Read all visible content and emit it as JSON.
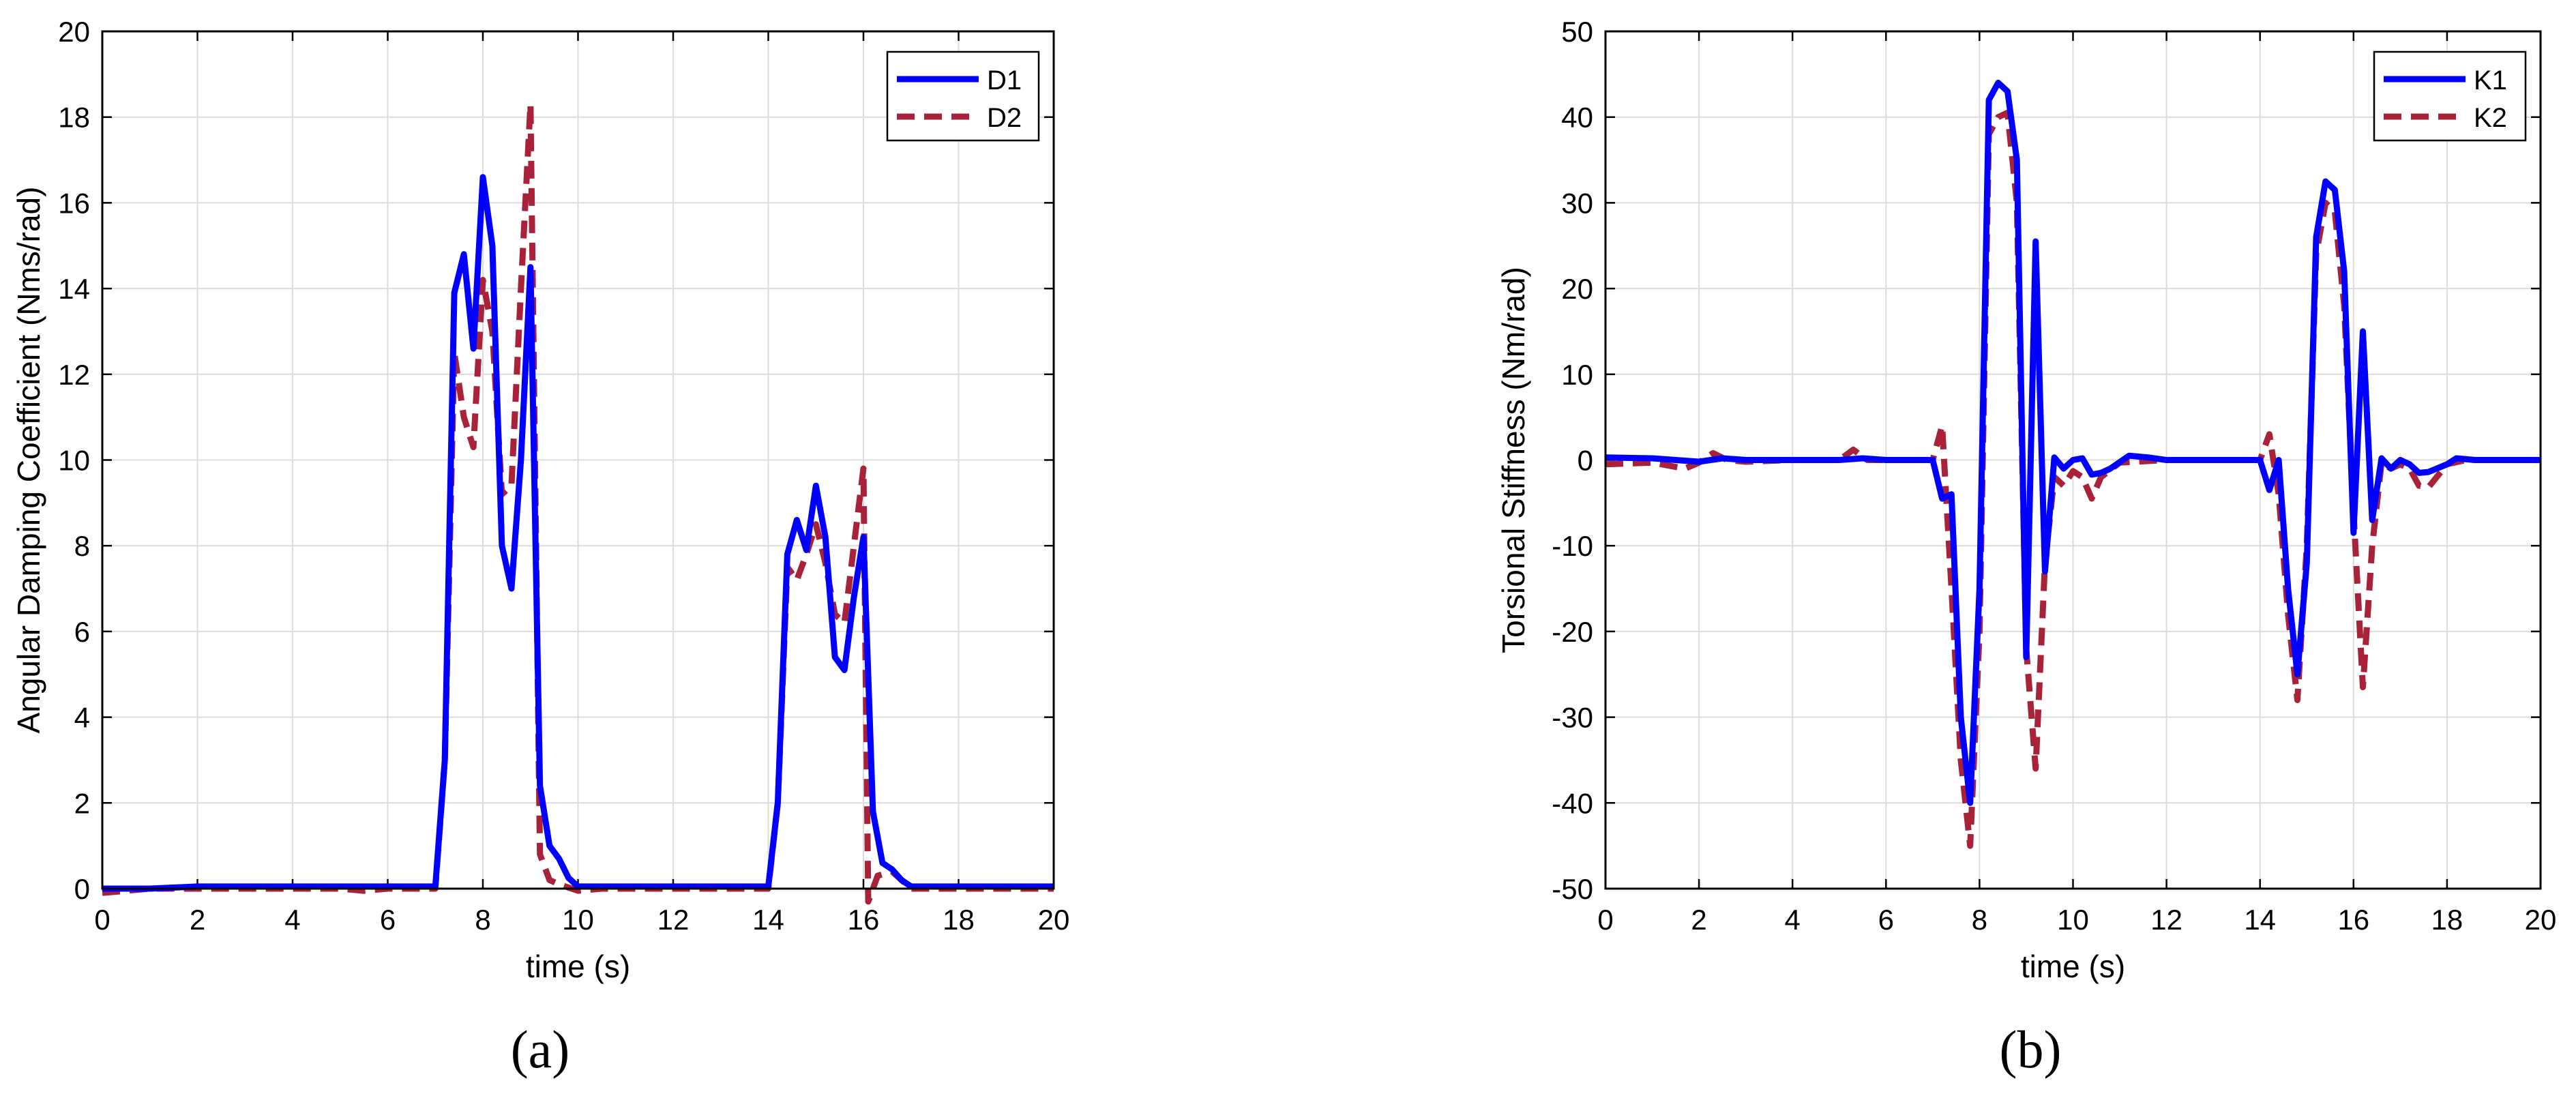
{
  "chart_data": [
    {
      "type": "line",
      "panel_label": "(a)",
      "xlabel": "time (s)",
      "ylabel": "Angular Damping Coefficient (Nms/rad)",
      "xlim": [
        0,
        20
      ],
      "ylim": [
        0,
        20
      ],
      "xticks": [
        0,
        2,
        4,
        6,
        8,
        10,
        12,
        14,
        16,
        18,
        20
      ],
      "yticks": [
        0,
        2,
        4,
        6,
        8,
        10,
        12,
        14,
        16,
        18,
        20
      ],
      "grid": true,
      "legend_position": "top-right",
      "series": [
        {
          "name": "D1",
          "color": "#0000ff",
          "style": "solid",
          "points": [
            [
              0,
              0
            ],
            [
              1,
              0
            ],
            [
              2,
              0.05
            ],
            [
              3,
              0.05
            ],
            [
              4,
              0.05
            ],
            [
              5,
              0.05
            ],
            [
              6,
              0.05
            ],
            [
              7,
              0.05
            ],
            [
              7.2,
              3
            ],
            [
              7.4,
              13.9
            ],
            [
              7.6,
              14.8
            ],
            [
              7.8,
              12.6
            ],
            [
              8.0,
              16.6
            ],
            [
              8.2,
              15
            ],
            [
              8.4,
              8
            ],
            [
              8.6,
              7
            ],
            [
              8.8,
              10
            ],
            [
              9.0,
              14.5
            ],
            [
              9.2,
              2.4
            ],
            [
              9.4,
              1
            ],
            [
              9.6,
              0.7
            ],
            [
              9.8,
              0.25
            ],
            [
              10,
              0.05
            ],
            [
              11,
              0.05
            ],
            [
              12,
              0.05
            ],
            [
              13,
              0.05
            ],
            [
              14,
              0.05
            ],
            [
              14.2,
              2
            ],
            [
              14.4,
              7.8
            ],
            [
              14.6,
              8.6
            ],
            [
              14.8,
              7.9
            ],
            [
              15.0,
              9.4
            ],
            [
              15.2,
              8.2
            ],
            [
              15.4,
              5.4
            ],
            [
              15.6,
              5.1
            ],
            [
              15.8,
              6.8
            ],
            [
              16.0,
              8.2
            ],
            [
              16.2,
              1.8
            ],
            [
              16.4,
              0.6
            ],
            [
              16.6,
              0.45
            ],
            [
              16.8,
              0.2
            ],
            [
              17,
              0.05
            ],
            [
              18,
              0.05
            ],
            [
              19,
              0.05
            ],
            [
              20,
              0.05
            ]
          ]
        },
        {
          "name": "D2",
          "color": "#a8223a",
          "style": "dashed",
          "points": [
            [
              0,
              -0.1
            ],
            [
              1,
              0
            ],
            [
              2,
              0
            ],
            [
              3,
              0
            ],
            [
              4,
              0
            ],
            [
              5,
              0
            ],
            [
              5.5,
              -0.05
            ],
            [
              6,
              0
            ],
            [
              7,
              0
            ],
            [
              7.2,
              3
            ],
            [
              7.4,
              12.5
            ],
            [
              7.6,
              11
            ],
            [
              7.8,
              10.3
            ],
            [
              8.0,
              14.2
            ],
            [
              8.2,
              13
            ],
            [
              8.4,
              9.2
            ],
            [
              8.6,
              9.4
            ],
            [
              8.8,
              14
            ],
            [
              9.0,
              18.3
            ],
            [
              9.2,
              0.8
            ],
            [
              9.4,
              0.2
            ],
            [
              9.6,
              0.1
            ],
            [
              10,
              -0.05
            ],
            [
              10.5,
              0
            ],
            [
              12,
              0
            ],
            [
              14,
              0
            ],
            [
              14.2,
              2
            ],
            [
              14.4,
              7.5
            ],
            [
              14.6,
              7.2
            ],
            [
              14.8,
              7.8
            ],
            [
              15.0,
              8.5
            ],
            [
              15.2,
              7.6
            ],
            [
              15.4,
              6.4
            ],
            [
              15.6,
              6.2
            ],
            [
              15.8,
              8
            ],
            [
              16.0,
              9.8
            ],
            [
              16.1,
              -0.3
            ],
            [
              16.3,
              0.3
            ],
            [
              16.6,
              0.4
            ],
            [
              17,
              0
            ],
            [
              18,
              0
            ],
            [
              20,
              0
            ]
          ]
        }
      ]
    },
    {
      "type": "line",
      "panel_label": "(b)",
      "xlabel": "time (s)",
      "ylabel": "Torsional Stiffness (Nm/rad)",
      "xlim": [
        0,
        20
      ],
      "ylim": [
        -50,
        50
      ],
      "xticks": [
        0,
        2,
        4,
        6,
        8,
        10,
        12,
        14,
        16,
        18,
        20
      ],
      "yticks": [
        -50,
        -40,
        -30,
        -20,
        -10,
        0,
        10,
        20,
        30,
        40,
        50
      ],
      "grid": true,
      "legend_position": "top-right",
      "series": [
        {
          "name": "K1",
          "color": "#0000ff",
          "style": "solid",
          "points": [
            [
              0,
              0.3
            ],
            [
              1,
              0.2
            ],
            [
              1.5,
              0
            ],
            [
              2,
              -0.2
            ],
            [
              2.5,
              0.2
            ],
            [
              3,
              0
            ],
            [
              4,
              0
            ],
            [
              5,
              0
            ],
            [
              5.5,
              0.2
            ],
            [
              6,
              0
            ],
            [
              7,
              0
            ],
            [
              7.2,
              -4.5
            ],
            [
              7.4,
              -4
            ],
            [
              7.6,
              -30
            ],
            [
              7.8,
              -40
            ],
            [
              8.0,
              -15
            ],
            [
              8.2,
              42
            ],
            [
              8.4,
              44
            ],
            [
              8.6,
              43
            ],
            [
              8.8,
              35
            ],
            [
              9.0,
              -23
            ],
            [
              9.2,
              25.5
            ],
            [
              9.4,
              -13
            ],
            [
              9.6,
              0.3
            ],
            [
              9.8,
              -1
            ],
            [
              10,
              0
            ],
            [
              10.2,
              0.2
            ],
            [
              10.4,
              -1.7
            ],
            [
              10.6,
              -1.5
            ],
            [
              10.8,
              -1
            ],
            [
              11.2,
              0.5
            ],
            [
              11.6,
              0.3
            ],
            [
              12,
              0
            ],
            [
              13,
              0
            ],
            [
              14,
              0
            ],
            [
              14.2,
              -3.5
            ],
            [
              14.4,
              0
            ],
            [
              14.6,
              -15
            ],
            [
              14.8,
              -25
            ],
            [
              15.0,
              -12
            ],
            [
              15.2,
              26
            ],
            [
              15.4,
              32.5
            ],
            [
              15.6,
              31.5
            ],
            [
              15.8,
              22
            ],
            [
              16.0,
              -8.5
            ],
            [
              16.2,
              15
            ],
            [
              16.4,
              -7
            ],
            [
              16.6,
              0.2
            ],
            [
              16.8,
              -1
            ],
            [
              17.0,
              0
            ],
            [
              17.2,
              -0.5
            ],
            [
              17.4,
              -1.5
            ],
            [
              17.6,
              -1.4
            ],
            [
              18,
              -0.5
            ],
            [
              18.2,
              0.2
            ],
            [
              18.6,
              0
            ],
            [
              20,
              0
            ]
          ]
        },
        {
          "name": "K2",
          "color": "#a8223a",
          "style": "dashed",
          "points": [
            [
              0,
              -0.5
            ],
            [
              1,
              -0.3
            ],
            [
              1.7,
              -1
            ],
            [
              2,
              -0.3
            ],
            [
              2.3,
              0.8
            ],
            [
              2.6,
              0
            ],
            [
              3,
              -0.2
            ],
            [
              4,
              0
            ],
            [
              5,
              0
            ],
            [
              5.3,
              1.2
            ],
            [
              5.6,
              0
            ],
            [
              6,
              0
            ],
            [
              7,
              0
            ],
            [
              7.2,
              4
            ],
            [
              7.4,
              -15
            ],
            [
              7.6,
              -35
            ],
            [
              7.8,
              -45
            ],
            [
              8.0,
              -20
            ],
            [
              8.2,
              38
            ],
            [
              8.4,
              40
            ],
            [
              8.6,
              40.5
            ],
            [
              8.8,
              30
            ],
            [
              9.0,
              -22
            ],
            [
              9.2,
              -36
            ],
            [
              9.4,
              -12
            ],
            [
              9.6,
              -2
            ],
            [
              9.8,
              -3
            ],
            [
              10,
              -1.3
            ],
            [
              10.2,
              -2
            ],
            [
              10.4,
              -4.5
            ],
            [
              10.6,
              -2
            ],
            [
              11,
              -0.3
            ],
            [
              12,
              0
            ],
            [
              14,
              0
            ],
            [
              14.2,
              3
            ],
            [
              14.4,
              -4
            ],
            [
              14.6,
              -18
            ],
            [
              14.8,
              -28
            ],
            [
              15.0,
              -10
            ],
            [
              15.2,
              24
            ],
            [
              15.4,
              30
            ],
            [
              15.6,
              29
            ],
            [
              15.8,
              18
            ],
            [
              16.0,
              -6
            ],
            [
              16.2,
              -26.5
            ],
            [
              16.4,
              -10
            ],
            [
              16.6,
              -0.3
            ],
            [
              16.8,
              -1
            ],
            [
              17.0,
              -0.5
            ],
            [
              17.2,
              -1
            ],
            [
              17.4,
              -3
            ],
            [
              17.6,
              -3.2
            ],
            [
              18,
              -0.5
            ],
            [
              18.4,
              0
            ],
            [
              20,
              0
            ]
          ]
        }
      ]
    }
  ]
}
